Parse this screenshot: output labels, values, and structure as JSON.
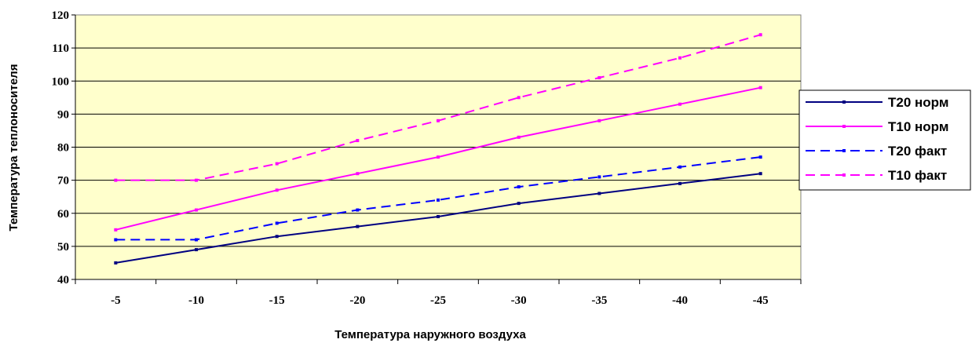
{
  "chart_data": {
    "type": "line",
    "title": "",
    "xlabel": "Температура наружного воздуха",
    "ylabel": "Температура теплоносителя",
    "categories": [
      "-5",
      "-10",
      "-15",
      "-20",
      "-25",
      "-30",
      "-35",
      "-40",
      "-45"
    ],
    "ylim": [
      40,
      120
    ],
    "yticks": [
      40,
      50,
      60,
      70,
      80,
      90,
      100,
      110,
      120
    ],
    "grid": "horizontal",
    "plot_background": "#FFFFCC",
    "legend_position": "right",
    "series": [
      {
        "name": "Т20 норм",
        "color": "#000080",
        "dash": "solid",
        "values": [
          45,
          49,
          53,
          56,
          59,
          63,
          66,
          69,
          72
        ]
      },
      {
        "name": "Т10 норм",
        "color": "#FF00FF",
        "dash": "solid",
        "values": [
          55,
          61,
          67,
          72,
          77,
          83,
          88,
          93,
          98
        ]
      },
      {
        "name": "Т20 факт",
        "color": "#0000FF",
        "dash": "dashed",
        "values": [
          52,
          52,
          57,
          61,
          64,
          68,
          71,
          74,
          77
        ]
      },
      {
        "name": "Т10 факт",
        "color": "#FF00FF",
        "dash": "dashed",
        "values": [
          70,
          70,
          75,
          82,
          88,
          95,
          101,
          107,
          114
        ]
      }
    ]
  }
}
